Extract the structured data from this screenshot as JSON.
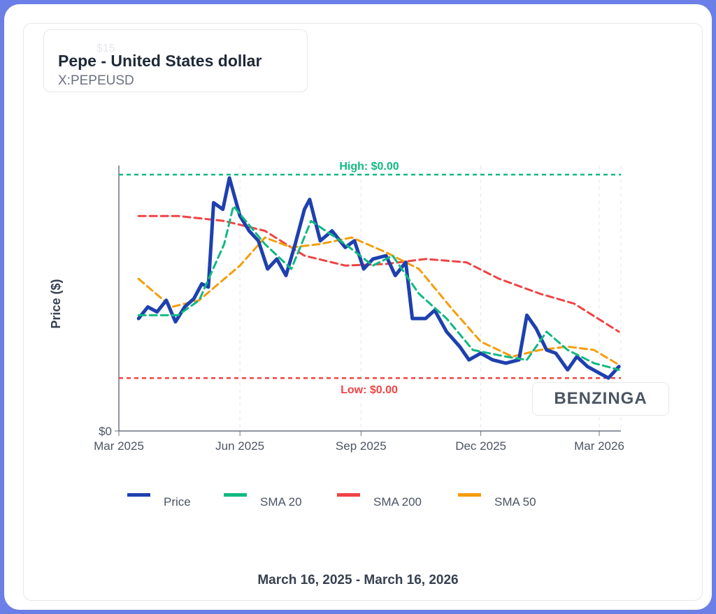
{
  "header": {
    "ghost_label": "$15",
    "title": "Pepe - United States dollar",
    "ticker": "X:PEPEUSD"
  },
  "watermark": "BENZINGA",
  "footer": {
    "date_range": "March 16, 2025 - March 16, 2026"
  },
  "chart_data": {
    "type": "line",
    "ylabel": "Price ($)",
    "yticks": [
      "$0"
    ],
    "ylim": [
      0,
      1.6e-05
    ],
    "xlim": [
      "2025-03-01",
      "2026-03-20"
    ],
    "xticks": [
      {
        "date": "2025-03-01",
        "label": "Mar 2025"
      },
      {
        "date": "2025-06-01",
        "label": "Jun 2025"
      },
      {
        "date": "2025-09-01",
        "label": "Sep 2025"
      },
      {
        "date": "2025-12-01",
        "label": "Dec 2025"
      },
      {
        "date": "2026-03-01",
        "label": "Mar 2026"
      }
    ],
    "grid": "vertical-dashed",
    "legend_position": "bottom",
    "annotations": [
      {
        "label": "High: $0.00",
        "value": 1.55e-05,
        "color": "#10b981"
      },
      {
        "label": "Low: $0.00",
        "value": 3.2e-06,
        "color": "#ef4444"
      }
    ],
    "series": [
      {
        "name": "Price",
        "color": "#1e40af",
        "width": 5,
        "dash": "",
        "points": [
          [
            "2025-03-16",
            6.8e-06
          ],
          [
            "2025-03-23",
            7.5e-06
          ],
          [
            "2025-03-30",
            7.2e-06
          ],
          [
            "2025-04-06",
            7.9e-06
          ],
          [
            "2025-04-13",
            6.6e-06
          ],
          [
            "2025-04-20",
            7.5e-06
          ],
          [
            "2025-04-27",
            8e-06
          ],
          [
            "2025-05-03",
            8.9e-06
          ],
          [
            "2025-05-08",
            8.7e-06
          ],
          [
            "2025-05-12",
            1.38e-05
          ],
          [
            "2025-05-19",
            1.34e-05
          ],
          [
            "2025-05-24",
            1.53e-05
          ],
          [
            "2025-06-01",
            1.3e-05
          ],
          [
            "2025-06-08",
            1.21e-05
          ],
          [
            "2025-06-15",
            1.15e-05
          ],
          [
            "2025-06-22",
            9.8e-06
          ],
          [
            "2025-06-29",
            1.04e-05
          ],
          [
            "2025-07-06",
            9.4e-06
          ],
          [
            "2025-07-13",
            1.13e-05
          ],
          [
            "2025-07-20",
            1.34e-05
          ],
          [
            "2025-07-24",
            1.4e-05
          ],
          [
            "2025-08-01",
            1.15e-05
          ],
          [
            "2025-08-10",
            1.21e-05
          ],
          [
            "2025-08-20",
            1.11e-05
          ],
          [
            "2025-08-27",
            1.15e-05
          ],
          [
            "2025-09-03",
            9.8e-06
          ],
          [
            "2025-09-10",
            1.04e-05
          ],
          [
            "2025-09-20",
            1.06e-05
          ],
          [
            "2025-09-27",
            9.4e-06
          ],
          [
            "2025-10-05",
            1.02e-05
          ],
          [
            "2025-10-10",
            6.8e-06
          ],
          [
            "2025-10-20",
            6.8e-06
          ],
          [
            "2025-10-27",
            7.3e-06
          ],
          [
            "2025-11-05",
            6e-06
          ],
          [
            "2025-11-15",
            5.1e-06
          ],
          [
            "2025-11-22",
            4.3e-06
          ],
          [
            "2025-12-01",
            4.7e-06
          ],
          [
            "2025-12-10",
            4.3e-06
          ],
          [
            "2025-12-20",
            4.1e-06
          ],
          [
            "2025-12-30",
            4.3e-06
          ],
          [
            "2026-01-05",
            7e-06
          ],
          [
            "2026-01-12",
            6.2e-06
          ],
          [
            "2026-01-20",
            4.9e-06
          ],
          [
            "2026-01-27",
            4.7e-06
          ],
          [
            "2026-02-05",
            3.7e-06
          ],
          [
            "2026-02-12",
            4.5e-06
          ],
          [
            "2026-02-20",
            3.9e-06
          ],
          [
            "2026-03-01",
            3.5e-06
          ],
          [
            "2026-03-08",
            3.2e-06
          ],
          [
            "2026-03-16",
            3.9e-06
          ]
        ]
      },
      {
        "name": "SMA 20",
        "color": "#10b981",
        "width": 3,
        "dash": "10 6",
        "points": [
          [
            "2025-03-16",
            7e-06
          ],
          [
            "2025-04-15",
            7e-06
          ],
          [
            "2025-05-01",
            7.9e-06
          ],
          [
            "2025-05-20",
            1.13e-05
          ],
          [
            "2025-05-27",
            1.36e-05
          ],
          [
            "2025-06-20",
            1.13e-05
          ],
          [
            "2025-07-10",
            9.8e-06
          ],
          [
            "2025-07-25",
            1.27e-05
          ],
          [
            "2025-08-20",
            1.13e-05
          ],
          [
            "2025-09-10",
            1e-05
          ],
          [
            "2025-09-25",
            1.06e-05
          ],
          [
            "2025-10-15",
            8.3e-06
          ],
          [
            "2025-11-05",
            6.8e-06
          ],
          [
            "2025-11-25",
            4.9e-06
          ],
          [
            "2025-12-20",
            4.5e-06
          ],
          [
            "2026-01-05",
            4.3e-06
          ],
          [
            "2026-01-20",
            6e-06
          ],
          [
            "2026-02-05",
            4.9e-06
          ],
          [
            "2026-02-25",
            4.1e-06
          ],
          [
            "2026-03-16",
            3.7e-06
          ]
        ]
      },
      {
        "name": "SMA 200",
        "color": "#ef4444",
        "width": 3,
        "dash": "10 6",
        "points": [
          [
            "2025-03-16",
            1.3e-05
          ],
          [
            "2025-04-15",
            1.3e-05
          ],
          [
            "2025-05-20",
            1.27e-05
          ],
          [
            "2025-06-20",
            1.21e-05
          ],
          [
            "2025-07-20",
            1.06e-05
          ],
          [
            "2025-08-20",
            1e-05
          ],
          [
            "2025-09-20",
            1.01e-05
          ],
          [
            "2025-10-20",
            1.04e-05
          ],
          [
            "2025-11-20",
            1.02e-05
          ],
          [
            "2025-12-15",
            9.2e-06
          ],
          [
            "2026-01-15",
            8.3e-06
          ],
          [
            "2026-02-10",
            7.7e-06
          ],
          [
            "2026-03-16",
            6e-06
          ]
        ]
      },
      {
        "name": "SMA 50",
        "color": "#f59e0b",
        "width": 3,
        "dash": "10 6",
        "points": [
          [
            "2025-03-16",
            9.2e-06
          ],
          [
            "2025-04-10",
            7.5e-06
          ],
          [
            "2025-05-01",
            7.9e-06
          ],
          [
            "2025-06-01",
            1e-05
          ],
          [
            "2025-06-20",
            1.17e-05
          ],
          [
            "2025-07-10",
            1.11e-05
          ],
          [
            "2025-08-01",
            1.13e-05
          ],
          [
            "2025-08-25",
            1.17e-05
          ],
          [
            "2025-09-20",
            1.08e-05
          ],
          [
            "2025-10-15",
            9.8e-06
          ],
          [
            "2025-11-10",
            7.3e-06
          ],
          [
            "2025-12-01",
            5.4e-06
          ],
          [
            "2025-12-25",
            4.5e-06
          ],
          [
            "2026-01-15",
            4.9e-06
          ],
          [
            "2026-02-05",
            5.1e-06
          ],
          [
            "2026-02-25",
            4.9e-06
          ],
          [
            "2026-03-16",
            4e-06
          ]
        ]
      }
    ]
  }
}
